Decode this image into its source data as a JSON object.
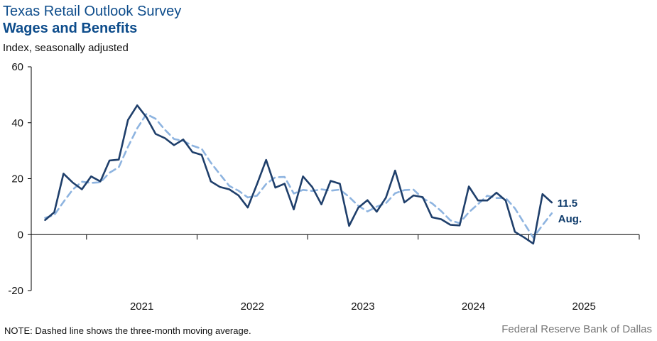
{
  "header": {
    "survey_title": "Texas Retail Outlook Survey",
    "chart_title": "Wages and Benefits",
    "subtitle": "Index, seasonally adjusted"
  },
  "footer": {
    "note": "NOTE: Dashed line shows the three-month moving average.",
    "source": "Federal Reserve Bank of Dallas"
  },
  "colors": {
    "index": "#1f3f6b",
    "moving_average": "#8eb4e0",
    "annotation": "#0d3a6a",
    "title": "#0d4c8b"
  },
  "chart_data": {
    "type": "line",
    "title": "Wages and Benefits",
    "ylabel": "Index, seasonally adjusted",
    "ylim": [
      -20,
      60
    ],
    "yticks": [
      -20,
      0,
      20,
      40,
      60
    ],
    "x_start": "2020-08",
    "x_end": "2025-08",
    "xlim": [
      "2020-07",
      "2025-12"
    ],
    "year_labels": [
      "2021",
      "2022",
      "2023",
      "2024",
      "2025"
    ],
    "grid": false,
    "series": [
      {
        "values": [
          5.2,
          8.0,
          21.8,
          18.6,
          16.2,
          20.8,
          19.0,
          26.5,
          26.8,
          41.0,
          46.2,
          42.0,
          36.0,
          34.5,
          32.0,
          34.0,
          29.5,
          28.5,
          19.0,
          17.0,
          16.2,
          14.0,
          9.7,
          18.0,
          26.7,
          16.8,
          18.2,
          9.0,
          20.8,
          17.0,
          10.8,
          19.2,
          18.2,
          3.1,
          9.6,
          12.3,
          8.2,
          13.2,
          22.9,
          11.5,
          14.0,
          13.4,
          6.2,
          5.5,
          3.5,
          3.3,
          17.2,
          12.2,
          12.2,
          15.0,
          12.2,
          1.0,
          -1.0,
          -3.2,
          14.5,
          11.5
        ]
      },
      {
        "values": [
          6.0,
          7.0,
          11.7,
          16.1,
          18.9,
          18.5,
          18.7,
          22.1,
          24.1,
          31.4,
          38.0,
          43.1,
          41.4,
          37.5,
          34.2,
          33.5,
          31.8,
          30.7,
          25.7,
          21.5,
          17.4,
          15.7,
          13.3,
          13.9,
          18.1,
          20.5,
          20.6,
          14.7,
          16.0,
          15.6,
          16.2,
          15.7,
          16.1,
          13.5,
          10.3,
          8.3,
          10.0,
          11.2,
          14.8,
          15.9,
          16.1,
          13.0,
          11.2,
          8.4,
          5.1,
          4.1,
          8.0,
          10.9,
          13.9,
          13.1,
          13.1,
          9.4,
          4.1,
          -1.1,
          3.4,
          7.6
        ]
      }
    ],
    "annotations": [
      {
        "label": "11.5",
        "value": 11.5,
        "date": "2025-08"
      },
      {
        "label": "Aug.",
        "date": "2025-08"
      }
    ]
  }
}
